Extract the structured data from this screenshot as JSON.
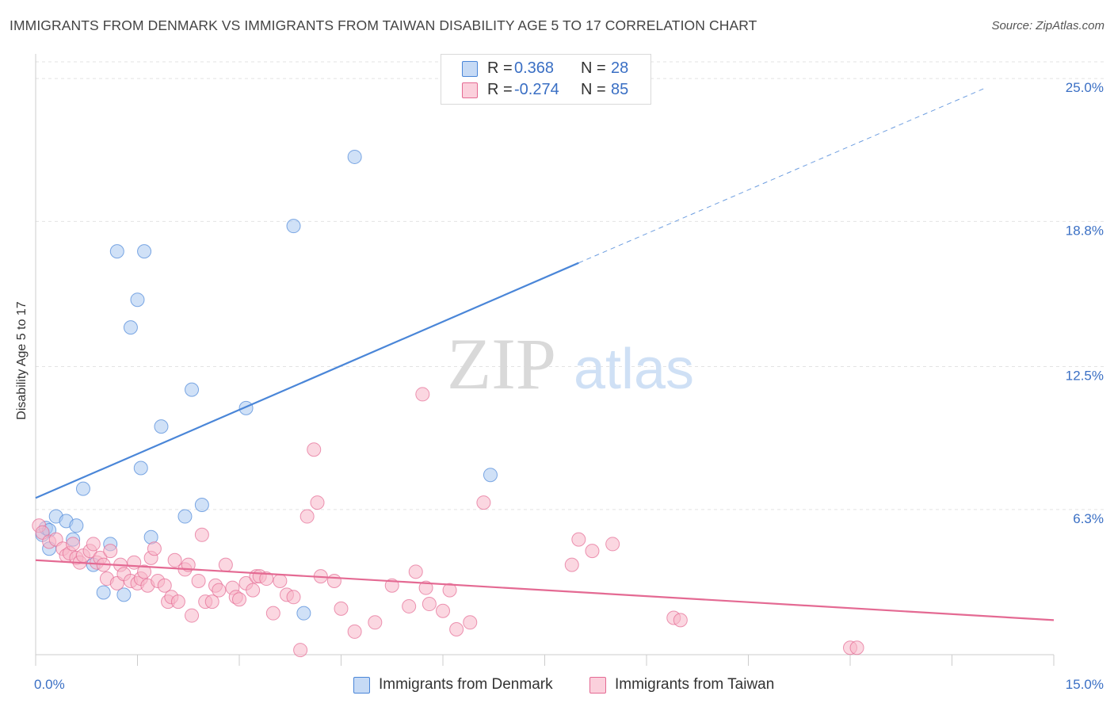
{
  "header": {
    "title": "IMMIGRANTS FROM DENMARK VS IMMIGRANTS FROM TAIWAN DISABILITY AGE 5 TO 17 CORRELATION CHART",
    "source": "Source: ZipAtlas.com"
  },
  "watermark": {
    "zip": "ZIP",
    "atlas": "atlas"
  },
  "legend_top": {
    "rows": [
      {
        "r_label": "R =",
        "r_value": "0.368",
        "n_label": "N =",
        "n_value": "28",
        "color": "#a9c8f0"
      },
      {
        "r_label": "R =",
        "r_value": "-0.274",
        "n_label": "N =",
        "n_value": "85",
        "color": "#f7b6c8"
      }
    ]
  },
  "legend_bottom": {
    "items": [
      {
        "label": "Immigrants from Denmark",
        "color": "#a9c8f0"
      },
      {
        "label": "Immigrants from Taiwan",
        "color": "#f7b6c8"
      }
    ]
  },
  "chart_data": {
    "type": "scatter",
    "title": "IMMIGRANTS FROM DENMARK VS IMMIGRANTS FROM TAIWAN DISABILITY AGE 5 TO 17 CORRELATION CHART",
    "xlabel": "",
    "ylabel": "Disability Age 5 to 17",
    "xlim": [
      0,
      15
    ],
    "ylim": [
      0,
      26
    ],
    "x_tick_labels": [
      "0.0%",
      "15.0%"
    ],
    "y_tick_values": [
      6.3,
      12.5,
      18.8,
      25.0
    ],
    "y_tick_labels": [
      "6.3%",
      "12.5%",
      "18.8%",
      "25.0%"
    ],
    "grid": "horizontal dashed",
    "legend_position": "top-center",
    "series": [
      {
        "name": "Immigrants from Denmark",
        "color": "#4a86d8",
        "fill": "#a9c8f0",
        "r": 0.368,
        "n": 28,
        "trend": {
          "x0": 0.0,
          "y0": 6.8,
          "x1": 8.0,
          "y1": 17.0,
          "dash_to_x": 14.0,
          "dash_to_y": 24.6
        },
        "points": [
          [
            0.1,
            5.2
          ],
          [
            0.15,
            5.5
          ],
          [
            0.2,
            4.6
          ],
          [
            0.3,
            6.0
          ],
          [
            0.45,
            5.8
          ],
          [
            0.55,
            5.0
          ],
          [
            0.6,
            5.6
          ],
          [
            0.7,
            7.2
          ],
          [
            0.85,
            3.9
          ],
          [
            1.0,
            2.7
          ],
          [
            1.1,
            4.8
          ],
          [
            1.2,
            17.5
          ],
          [
            1.3,
            2.6
          ],
          [
            1.4,
            14.2
          ],
          [
            1.5,
            15.4
          ],
          [
            1.55,
            8.1
          ],
          [
            1.6,
            17.5
          ],
          [
            1.7,
            5.1
          ],
          [
            1.85,
            9.9
          ],
          [
            2.2,
            6.0
          ],
          [
            2.3,
            11.5
          ],
          [
            2.45,
            6.5
          ],
          [
            3.1,
            10.7
          ],
          [
            3.8,
            18.6
          ],
          [
            3.95,
            1.8
          ],
          [
            4.7,
            21.6
          ],
          [
            6.7,
            7.8
          ],
          [
            0.2,
            5.4
          ]
        ]
      },
      {
        "name": "Immigrants from Taiwan",
        "color": "#e46a93",
        "fill": "#f7b6c8",
        "r": -0.274,
        "n": 85,
        "trend": {
          "x0": 0.0,
          "y0": 4.1,
          "x1": 15.0,
          "y1": 1.5
        },
        "points": [
          [
            0.05,
            5.6
          ],
          [
            0.1,
            5.3
          ],
          [
            0.2,
            4.9
          ],
          [
            0.3,
            5.0
          ],
          [
            0.4,
            4.6
          ],
          [
            0.45,
            4.3
          ],
          [
            0.5,
            4.4
          ],
          [
            0.55,
            4.8
          ],
          [
            0.6,
            4.2
          ],
          [
            0.65,
            4.0
          ],
          [
            0.7,
            4.3
          ],
          [
            0.8,
            4.5
          ],
          [
            0.85,
            4.8
          ],
          [
            0.9,
            4.0
          ],
          [
            0.95,
            4.2
          ],
          [
            1.0,
            3.9
          ],
          [
            1.05,
            3.3
          ],
          [
            1.1,
            4.5
          ],
          [
            1.2,
            3.1
          ],
          [
            1.25,
            3.9
          ],
          [
            1.3,
            3.5
          ],
          [
            1.4,
            3.2
          ],
          [
            1.45,
            4.0
          ],
          [
            1.5,
            3.1
          ],
          [
            1.55,
            3.3
          ],
          [
            1.6,
            3.6
          ],
          [
            1.65,
            3.0
          ],
          [
            1.7,
            4.2
          ],
          [
            1.75,
            4.6
          ],
          [
            1.8,
            3.2
          ],
          [
            1.9,
            3.0
          ],
          [
            1.95,
            2.3
          ],
          [
            2.0,
            2.5
          ],
          [
            2.05,
            4.1
          ],
          [
            2.1,
            2.3
          ],
          [
            2.2,
            3.7
          ],
          [
            2.25,
            3.9
          ],
          [
            2.3,
            1.7
          ],
          [
            2.4,
            3.2
          ],
          [
            2.45,
            5.2
          ],
          [
            2.5,
            2.3
          ],
          [
            2.6,
            2.3
          ],
          [
            2.65,
            3.0
          ],
          [
            2.7,
            2.8
          ],
          [
            2.8,
            3.9
          ],
          [
            2.9,
            2.9
          ],
          [
            2.95,
            2.5
          ],
          [
            3.0,
            2.4
          ],
          [
            3.1,
            3.1
          ],
          [
            3.2,
            2.8
          ],
          [
            3.25,
            3.4
          ],
          [
            3.3,
            3.4
          ],
          [
            3.4,
            3.3
          ],
          [
            3.5,
            1.8
          ],
          [
            3.6,
            3.2
          ],
          [
            3.7,
            2.6
          ],
          [
            3.8,
            2.5
          ],
          [
            3.9,
            0.2
          ],
          [
            4.0,
            6.0
          ],
          [
            4.1,
            8.9
          ],
          [
            4.15,
            6.6
          ],
          [
            4.2,
            3.4
          ],
          [
            4.4,
            3.2
          ],
          [
            4.5,
            2.0
          ],
          [
            4.7,
            1.0
          ],
          [
            5.0,
            1.4
          ],
          [
            5.25,
            3.0
          ],
          [
            5.5,
            2.1
          ],
          [
            5.6,
            3.6
          ],
          [
            5.7,
            11.3
          ],
          [
            5.75,
            2.9
          ],
          [
            5.8,
            2.2
          ],
          [
            6.0,
            1.9
          ],
          [
            6.1,
            2.8
          ],
          [
            6.2,
            1.1
          ],
          [
            6.4,
            1.4
          ],
          [
            7.9,
            3.9
          ],
          [
            8.0,
            5.0
          ],
          [
            8.2,
            4.5
          ],
          [
            8.5,
            4.8
          ],
          [
            9.4,
            1.6
          ],
          [
            9.5,
            1.5
          ],
          [
            12.0,
            0.3
          ],
          [
            12.1,
            0.3
          ],
          [
            6.6,
            6.6
          ]
        ]
      }
    ]
  }
}
